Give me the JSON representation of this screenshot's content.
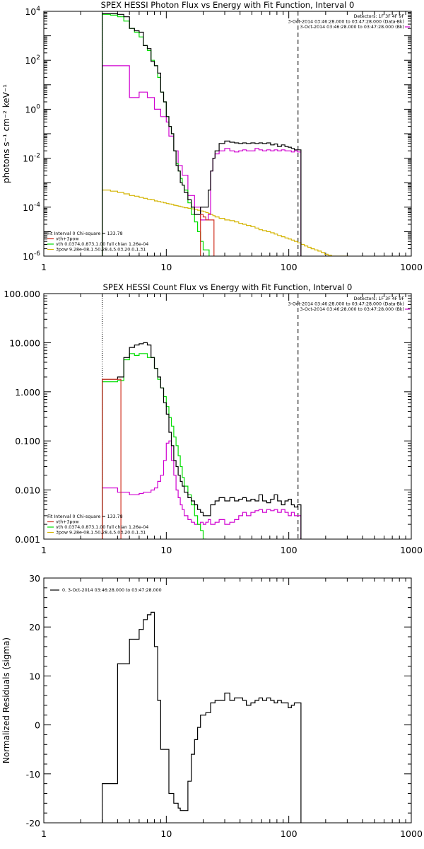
{
  "chart_data": [
    {
      "type": "line",
      "title": "SPEX HESSI Photon Flux vs Energy with Fit Function, Interval 0",
      "xlabel": "",
      "ylabel": "photons s⁻¹ cm⁻² keV⁻¹",
      "xscale": "log",
      "yscale": "log",
      "xlim": [
        1,
        1000
      ],
      "ylim": [
        1e-06,
        10000
      ],
      "xticks": [
        1,
        10,
        100,
        1000
      ],
      "xtick_labels": [
        "1",
        "10",
        "100",
        "1000"
      ],
      "yticks": [
        1e-06,
        0.0001,
        0.01,
        1,
        100,
        10000
      ],
      "ytick_labels": [
        {
          "base": "10",
          "exp": "-6"
        },
        {
          "base": "10",
          "exp": "-4"
        },
        {
          "base": "10",
          "exp": "-2"
        },
        {
          "base": "10",
          "exp": "0"
        },
        {
          "base": "10",
          "exp": "2"
        },
        {
          "base": "10",
          "exp": "4"
        }
      ],
      "info_top_right": [
        "Detectors: 1F 3F 4F 9F",
        "3-Oct-2014 03:46:28.000 to 03:47:28.000 (Data-Bk)",
        "3-Oct-2014 03:46:28.000 to 03:47:28.000 (Bk)"
      ],
      "legend": [
        "Fit Interval 0   Chi-square = 133.78",
        "vth+3pow",
        "vth 0.0374,0.873,1.00  full chian 1.26e-04",
        "3pow 9.28e-08,1.50,28.4,5.03,20.0,1.31"
      ],
      "colors": {
        "data": "#000000",
        "background": "#d000d0",
        "total": "#d03020",
        "vth": "#00dd00",
        "pow": "#d4b400"
      },
      "vlines": [
        {
          "x": 3,
          "style": "dotted",
          "color": "#00aa00"
        },
        {
          "x": 119,
          "style": "dashed",
          "color": "#000000"
        }
      ],
      "series": [
        {
          "key": "data",
          "style": "step",
          "x": [
            3,
            3.5,
            4,
            4.5,
            5,
            5.5,
            6,
            6.5,
            7,
            7.5,
            8,
            8.5,
            9,
            9.5,
            10,
            10.5,
            11,
            11.5,
            12,
            12.5,
            13,
            13.5,
            14,
            15,
            16,
            17,
            18,
            19,
            20,
            21,
            22,
            23,
            24,
            25,
            27,
            30,
            33,
            36,
            39,
            42,
            45,
            49,
            53,
            57,
            61,
            66,
            71,
            76,
            81,
            87,
            93,
            99,
            105,
            111,
            118
          ],
          "y": [
            8000,
            8000,
            7500,
            6000,
            2000,
            1600,
            1400,
            400,
            300,
            90,
            60,
            30,
            5,
            2,
            0.5,
            0.2,
            0.1,
            0.02,
            0.005,
            0.003,
            0.001,
            0.0008,
            0.0004,
            0.0002,
            0.0001,
            5e-05,
            5e-05,
            0.0001,
            0.0001,
            0.0001,
            0.0005,
            0.003,
            0.01,
            0.02,
            0.04,
            0.05,
            0.045,
            0.042,
            0.04,
            0.042,
            0.04,
            0.042,
            0.04,
            0.042,
            0.04,
            0.042,
            0.035,
            0.038,
            0.03,
            0.035,
            0.03,
            0.028,
            0.025,
            0.022,
            0.022
          ]
        },
        {
          "key": "vth",
          "style": "step",
          "x": [
            3,
            3.5,
            4,
            4.5,
            5,
            5.5,
            6,
            6.5,
            7,
            7.5,
            8,
            8.5,
            9,
            9.5,
            10,
            10.5,
            11,
            11.5,
            12,
            12.5,
            13,
            13.5,
            14,
            15,
            16,
            17,
            18,
            19,
            20,
            21
          ],
          "y": [
            7500,
            7000,
            6000,
            4000,
            2000,
            1400,
            900,
            400,
            250,
            100,
            60,
            20,
            5,
            2,
            0.5,
            0.2,
            0.1,
            0.02,
            0.006,
            0.003,
            0.0015,
            0.0008,
            0.0005,
            0.00015,
            5e-05,
            2.5e-05,
            1e-05,
            4e-06,
            1.8e-06,
            1.8e-06
          ]
        },
        {
          "key": "background",
          "style": "step",
          "x": [
            3,
            3.5,
            4,
            4.5,
            5,
            5.5,
            6,
            6.5,
            7,
            7.5,
            8,
            8.5,
            9,
            9.5,
            10,
            10.5,
            11,
            11.5,
            12,
            12.5,
            13,
            13.5,
            14,
            15,
            16,
            17,
            18,
            19,
            20,
            21,
            22,
            23,
            24,
            25,
            27,
            30,
            33,
            36,
            39,
            42,
            45,
            49,
            53,
            57,
            61,
            66,
            71,
            76,
            81,
            87,
            93,
            99,
            105,
            111,
            118
          ],
          "y": [
            60,
            60,
            60,
            60,
            3,
            3,
            5,
            5,
            3,
            3,
            1,
            1,
            0.5,
            0.5,
            0.3,
            0.08,
            0.08,
            0.02,
            0.02,
            0.005,
            0.005,
            0.002,
            0.002,
            0.0003,
            0.0003,
            0.0001,
            0.0001,
            3e-05,
            3e-05,
            3e-05,
            5e-05,
            0.003,
            0.01,
            0.015,
            0.02,
            0.025,
            0.02,
            0.018,
            0.02,
            0.022,
            0.02,
            0.02,
            0.025,
            0.022,
            0.02,
            0.022,
            0.02,
            0.022,
            0.02,
            0.022,
            0.02,
            0.02,
            0.018,
            0.02,
            0.018
          ]
        },
        {
          "key": "pow",
          "style": "step",
          "x": [
            3,
            3.5,
            4,
            4.5,
            5,
            5.5,
            6,
            6.5,
            7,
            7.5,
            8,
            8.5,
            9,
            9.5,
            10,
            10.5,
            11,
            11.5,
            12,
            12.5,
            13,
            13.5,
            14,
            15,
            16,
            17,
            18,
            19,
            20,
            21,
            22,
            23,
            24,
            25,
            27,
            30,
            33,
            36,
            39,
            42,
            45,
            49,
            53,
            57,
            61,
            66,
            71,
            76,
            81,
            87,
            93,
            99,
            105,
            111,
            118,
            126,
            134,
            143,
            152,
            162,
            173,
            184,
            196,
            209,
            223,
            238,
            254,
            271,
            289
          ],
          "y": [
            0.0005,
            0.00045,
            0.0004,
            0.00035,
            0.0003,
            0.00028,
            0.00025,
            0.00023,
            0.00021,
            0.0002,
            0.00018,
            0.00017,
            0.00016,
            0.00015,
            0.00014,
            0.000135,
            0.00013,
            0.00012,
            0.000115,
            0.00011,
            0.000105,
            0.0001,
            9.5e-05,
            9e-05,
            8.5e-05,
            8e-05,
            7.5e-05,
            7e-05,
            6.5e-05,
            6e-05,
            5.5e-05,
            5e-05,
            4.5e-05,
            4e-05,
            3.5e-05,
            3e-05,
            2.8e-05,
            2.5e-05,
            2.2e-05,
            2e-05,
            1.8e-05,
            1.6e-05,
            1.4e-05,
            1.2e-05,
            1.1e-05,
            1e-05,
            9e-06,
            8e-06,
            7e-06,
            6.2e-06,
            5.5e-06,
            5e-06,
            4.5e-06,
            4e-06,
            3.5e-06,
            3e-06,
            2.6e-06,
            2.3e-06,
            2e-06,
            1.8e-06,
            1.6e-06,
            1.4e-06,
            1.2e-06,
            1.1e-06,
            1e-06,
            1e-06,
            1e-06,
            1e-06,
            1e-06
          ]
        },
        {
          "key": "total",
          "style": "step",
          "x": [
            19,
            20,
            21,
            22,
            23
          ],
          "y": [
            5e-05,
            4e-05,
            3e-05,
            3e-05,
            3e-05
          ]
        }
      ]
    },
    {
      "type": "line",
      "title": "SPEX HESSI Count Flux vs Energy with Fit Function, Interval 0",
      "xlabel": "",
      "ylabel": "",
      "xscale": "log",
      "yscale": "log",
      "xlim": [
        1,
        1000
      ],
      "ylim": [
        0.001,
        100
      ],
      "xticks": [
        1,
        10,
        100,
        1000
      ],
      "xtick_labels": [
        "1",
        "10",
        "100",
        "1000"
      ],
      "yticks": [
        0.001,
        0.01,
        0.1,
        1,
        10,
        100
      ],
      "ytick_labels": [
        "0.001",
        "0.010",
        "0.100",
        "1.000",
        "10.000",
        "100.000"
      ],
      "info_top_right": [
        "Detectors: 1F 3F 4F 9F",
        "3-Oct-2014 03:46:28.000 to 03:47:28.000 (Data-Bk)",
        "3-Oct-2014 03:46:28.000 to 03:47:28.000 (Bk)"
      ],
      "legend": [
        "Fit Interval 0   Chi-square = 133.78",
        "vth+3pow",
        "vth 0.0374,0.873,1.00  full chian 1.26e-04",
        "3pow 9.28e-08,1.50,28.4,5.03,20.0,1.31"
      ],
      "colors": {
        "data": "#000000",
        "background": "#d000d0",
        "total": "#d03020",
        "vth": "#00dd00",
        "pow": "#d4b400"
      },
      "vlines": [
        {
          "x": 3,
          "style": "dotted",
          "color": "#000000"
        },
        {
          "x": 119,
          "style": "dashed",
          "color": "#000000"
        }
      ],
      "series": [
        {
          "key": "data",
          "style": "step",
          "x": [
            3,
            3.5,
            4,
            4.5,
            5,
            5.5,
            6,
            6.5,
            7,
            7.5,
            8,
            8.5,
            9,
            9.5,
            10,
            10.5,
            11,
            11.5,
            12,
            12.5,
            13,
            13.5,
            14,
            15,
            16,
            17,
            18,
            19,
            20,
            21,
            22,
            23,
            24,
            25,
            27,
            30,
            33,
            36,
            39,
            42,
            45,
            49,
            53,
            57,
            61,
            66,
            71,
            76,
            81,
            87,
            93,
            99,
            105,
            111,
            118
          ],
          "y": [
            1.8,
            1.8,
            2,
            5,
            8,
            9,
            9.5,
            10,
            9,
            5,
            3,
            2,
            1.2,
            0.6,
            0.35,
            0.15,
            0.08,
            0.04,
            0.03,
            0.02,
            0.015,
            0.012,
            0.009,
            0.007,
            0.006,
            0.005,
            0.004,
            0.0035,
            0.003,
            0.003,
            0.003,
            0.005,
            0.005,
            0.006,
            0.007,
            0.006,
            0.007,
            0.006,
            0.0065,
            0.007,
            0.006,
            0.0065,
            0.006,
            0.008,
            0.006,
            0.0055,
            0.0065,
            0.008,
            0.006,
            0.005,
            0.006,
            0.0065,
            0.005,
            0.0045,
            0.005
          ]
        },
        {
          "key": "vth",
          "style": "step",
          "x": [
            3,
            3.5,
            4,
            4.5,
            5,
            5.5,
            6,
            6.5,
            7,
            7.5,
            8,
            8.5,
            9,
            9.5,
            10,
            10.5,
            11,
            11.5,
            12,
            12.5,
            13,
            13.5,
            14,
            15,
            16,
            17,
            18,
            19,
            20
          ],
          "y": [
            1.6,
            1.6,
            1.7,
            4.5,
            6,
            5.5,
            6,
            6,
            5,
            5,
            3,
            1.8,
            1.2,
            0.8,
            0.5,
            0.3,
            0.2,
            0.12,
            0.08,
            0.05,
            0.03,
            0.018,
            0.012,
            0.008,
            0.005,
            0.003,
            0.002,
            0.0015,
            0.001
          ]
        },
        {
          "key": "background",
          "style": "step",
          "x": [
            3,
            3.5,
            4,
            4.5,
            5,
            5.5,
            6,
            6.5,
            7,
            7.5,
            8,
            8.5,
            9,
            9.5,
            10,
            10.5,
            11,
            11.5,
            12,
            12.5,
            13,
            13.5,
            14,
            15,
            16,
            17,
            18,
            19,
            20,
            21,
            22,
            23,
            24,
            25,
            27,
            30,
            33,
            36,
            39,
            42,
            45,
            49,
            53,
            57,
            61,
            66,
            71,
            76,
            81,
            87,
            93,
            99,
            105,
            111,
            118
          ],
          "y": [
            0.011,
            0.011,
            0.009,
            0.009,
            0.008,
            0.008,
            0.0085,
            0.009,
            0.009,
            0.01,
            0.011,
            0.015,
            0.02,
            0.04,
            0.09,
            0.1,
            0.04,
            0.02,
            0.01,
            0.007,
            0.005,
            0.004,
            0.003,
            0.0025,
            0.0022,
            0.002,
            0.002,
            0.0022,
            0.002,
            0.0022,
            0.0025,
            0.002,
            0.002,
            0.0022,
            0.0025,
            0.002,
            0.0022,
            0.0025,
            0.003,
            0.0035,
            0.003,
            0.0035,
            0.0038,
            0.004,
            0.0035,
            0.004,
            0.0038,
            0.004,
            0.0035,
            0.004,
            0.0035,
            0.003,
            0.0035,
            0.003,
            0.003
          ]
        },
        {
          "key": "total",
          "style": "step",
          "x": [
            3,
            3.5,
            4
          ],
          "y": [
            1.8,
            1.8,
            1.8
          ]
        }
      ]
    },
    {
      "type": "line",
      "title": "",
      "xlabel": "",
      "ylabel": "Normalized Residuals (sigma)",
      "xscale": "log",
      "yscale": "linear",
      "xlim": [
        1,
        1000
      ],
      "ylim": [
        -20,
        30
      ],
      "xticks": [
        1,
        10,
        100,
        1000
      ],
      "xtick_labels": [
        "1",
        "10",
        "100",
        "1000"
      ],
      "yticks": [
        -20,
        -10,
        0,
        10,
        20,
        30
      ],
      "ytick_labels": [
        "-20",
        "-10",
        "0",
        "10",
        "20",
        "30"
      ],
      "legend": [
        "0.  3-Oct-2014 03:46:28.000 to 03:47:28.000"
      ],
      "colors": {
        "data": "#000000"
      },
      "series": [
        {
          "key": "data",
          "style": "step",
          "x": [
            3,
            3.5,
            4,
            4.5,
            5,
            5.5,
            6,
            6.5,
            7,
            7.5,
            8,
            8.5,
            9,
            9.5,
            10,
            10.5,
            11,
            11.5,
            12,
            12.5,
            13,
            13.5,
            14,
            15,
            16,
            17,
            18,
            19,
            20,
            21,
            22,
            23,
            24,
            25,
            27,
            30,
            33,
            36,
            39,
            42,
            45,
            49,
            53,
            57,
            61,
            66,
            71,
            76,
            81,
            87,
            93,
            99,
            105,
            111,
            118
          ],
          "y": [
            -12,
            -12,
            12.5,
            12.5,
            17.5,
            17.5,
            19.5,
            21.5,
            22.5,
            23,
            16,
            5,
            -5,
            -5,
            -5,
            -14,
            -14,
            -16,
            -16,
            -17,
            -17.5,
            -17.5,
            -17.5,
            -11.5,
            -6,
            -3,
            -0.5,
            2,
            2,
            2.5,
            2.5,
            4.5,
            4.5,
            5,
            5,
            6.5,
            5,
            5.5,
            5.5,
            5,
            4,
            4.5,
            5,
            5.5,
            5,
            5.5,
            5,
            4.5,
            5,
            4.5,
            4.5,
            3.5,
            4,
            4.5,
            4.5
          ]
        }
      ]
    }
  ]
}
